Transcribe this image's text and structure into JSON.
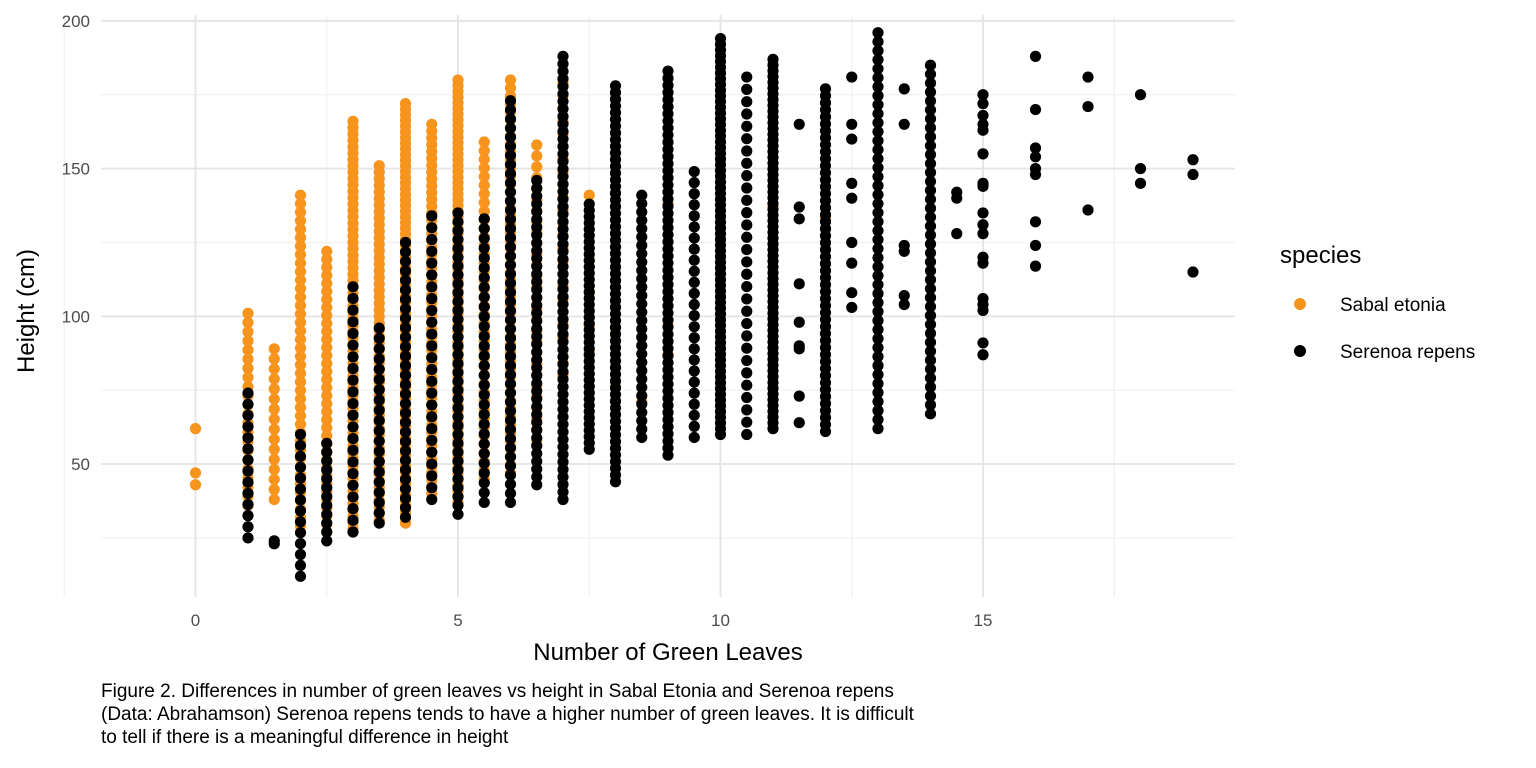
{
  "chart_data": {
    "type": "scatter",
    "xlabel": "Number of Green Leaves",
    "ylabel": "Height (cm)",
    "xlim": [
      -1.8,
      19.8
    ],
    "ylim": [
      5,
      202
    ],
    "x_ticks": [
      0,
      5,
      10,
      15
    ],
    "y_ticks": [
      50,
      100,
      150,
      200
    ],
    "grid": true,
    "legend": {
      "title": "species",
      "placement": "right"
    },
    "series": [
      {
        "name": "Sabal etonia",
        "color": "#F7941D",
        "columns": [
          {
            "x": 0,
            "y": [
              43,
              47,
              62
            ]
          },
          {
            "x": 1,
            "min": 36,
            "max": 101,
            "n": 22
          },
          {
            "x": 1.5,
            "min": 38,
            "max": 89,
            "n": 16
          },
          {
            "x": 2,
            "min": 29,
            "max": 141,
            "n": 40
          },
          {
            "x": 2.5,
            "min": 27,
            "max": 122,
            "n": 36
          },
          {
            "x": 3,
            "min": 28,
            "max": 166,
            "n": 65
          },
          {
            "x": 3.5,
            "min": 31,
            "max": 151,
            "n": 55
          },
          {
            "x": 4,
            "min": 30,
            "max": 172,
            "n": 75
          },
          {
            "x": 4.5,
            "min": 40,
            "max": 165,
            "n": 55
          },
          {
            "x": 5,
            "min": 37,
            "max": 180,
            "n": 75
          },
          {
            "x": 5.5,
            "min": 45,
            "max": 159,
            "n": 40
          },
          {
            "x": 6,
            "min": 47,
            "max": 180,
            "n": 50
          },
          {
            "x": 6.5,
            "min": 58,
            "max": 158,
            "n": 28
          },
          {
            "x": 7,
            "min": 80,
            "max": 179,
            "n": 24
          },
          {
            "x": 7.5,
            "y": [
              141,
              119,
              108,
              97,
              88
            ]
          },
          {
            "x": 8,
            "y": [
              112,
              96,
              76
            ]
          },
          {
            "x": 8.5,
            "y": [
              71
            ]
          },
          {
            "x": 9,
            "y": [
              154,
              138,
              97,
              87
            ]
          },
          {
            "x": 11,
            "y": [
              137
            ]
          },
          {
            "x": 12,
            "y": [
              133
            ]
          }
        ]
      },
      {
        "name": "Serenoa repens",
        "color": "#000000",
        "columns": [
          {
            "x": 1,
            "min": 25,
            "max": 74,
            "n": 14
          },
          {
            "x": 1.5,
            "y": [
              23,
              24
            ]
          },
          {
            "x": 2,
            "min": 12,
            "max": 60,
            "n": 14
          },
          {
            "x": 2.5,
            "min": 24,
            "max": 57,
            "n": 12
          },
          {
            "x": 3,
            "min": 27,
            "max": 110,
            "n": 22
          },
          {
            "x": 3.5,
            "min": 30,
            "max": 96,
            "n": 20
          },
          {
            "x": 4,
            "min": 32,
            "max": 125,
            "n": 30
          },
          {
            "x": 4.5,
            "min": 38,
            "max": 134,
            "n": 25
          },
          {
            "x": 5,
            "min": 33,
            "max": 135,
            "n": 35
          },
          {
            "x": 5.5,
            "min": 37,
            "max": 133,
            "n": 30
          },
          {
            "x": 6,
            "min": 37,
            "max": 173,
            "n": 45
          },
          {
            "x": 6.5,
            "min": 43,
            "max": 146,
            "n": 40
          },
          {
            "x": 7,
            "min": 38,
            "max": 188,
            "n": 60
          },
          {
            "x": 7.5,
            "min": 55,
            "max": 138,
            "n": 40
          },
          {
            "x": 8,
            "min": 44,
            "max": 178,
            "n": 60
          },
          {
            "x": 8.5,
            "min": 59,
            "max": 141,
            "n": 30
          },
          {
            "x": 9,
            "min": 53,
            "max": 183,
            "n": 55
          },
          {
            "x": 9.5,
            "min": 59,
            "max": 149,
            "n": 25
          },
          {
            "x": 10,
            "min": 60,
            "max": 194,
            "n": 70
          },
          {
            "x": 10.5,
            "min": 60,
            "max": 181,
            "n": 30
          },
          {
            "x": 11,
            "min": 62,
            "max": 187,
            "n": 65
          },
          {
            "x": 11.5,
            "y": [
              165,
              137,
              133,
              111,
              98,
              90,
              89,
              73,
              64
            ]
          },
          {
            "x": 12,
            "min": 61,
            "max": 177,
            "n": 50
          },
          {
            "x": 12.5,
            "y": [
              181,
              165,
              160,
              145,
              140,
              125,
              118,
              108,
              103
            ]
          },
          {
            "x": 13,
            "min": 62,
            "max": 196,
            "n": 45
          },
          {
            "x": 13.5,
            "y": [
              177,
              165,
              124,
              122,
              107,
              104
            ]
          },
          {
            "x": 14,
            "min": 67,
            "max": 185,
            "n": 40
          },
          {
            "x": 14.5,
            "y": [
              142,
              140,
              128
            ]
          },
          {
            "x": 15,
            "y": [
              175,
              172,
              168,
              165,
              163,
              155,
              145,
              144,
              135,
              131,
              128,
              120,
              118,
              106,
              104,
              102,
              91,
              87
            ]
          },
          {
            "x": 16,
            "y": [
              188,
              170,
              157,
              154,
              150,
              148,
              132,
              124,
              117
            ]
          },
          {
            "x": 17,
            "y": [
              181,
              171,
              136
            ]
          },
          {
            "x": 18,
            "y": [
              175,
              150,
              145
            ]
          },
          {
            "x": 19,
            "y": [
              153,
              148,
              115
            ]
          }
        ]
      }
    ]
  },
  "caption": "Figure 2. Differences in number of green leaves vs height in Sabal Etonia and Serenoa repens\n(Data: Abrahamson) Serenoa repens tends to have a higher number of green leaves. It is difficult\nto tell if there is a meaningful difference in height"
}
